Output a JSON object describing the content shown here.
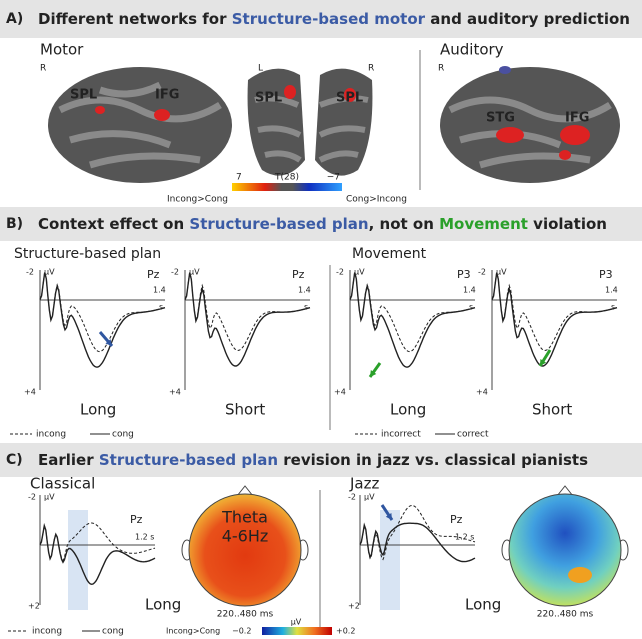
{
  "panel_a": {
    "label": "A)",
    "title": [
      "Different networks for ",
      "Structure-based motor",
      " and auditory prediction"
    ],
    "motor": "Motor",
    "auditory": "Auditory",
    "hemispheres": [
      "R",
      "L",
      "R",
      "R"
    ],
    "regions": [
      "SPL",
      "IFG",
      "SPL",
      "SPL",
      "STG",
      "IFG"
    ],
    "colorbar": {
      "left": "Incong>Cong",
      "max": "7",
      "stat": "T(28)",
      "min": "−7",
      "right": "Cong>Incong"
    }
  },
  "panel_b": {
    "label": "B)",
    "title": [
      "Context effect on ",
      "Structure-based plan",
      ", not on ",
      "Movement",
      " violation"
    ],
    "groups": [
      "Structure-based plan",
      "Movement"
    ],
    "plots": [
      {
        "top": "-2",
        "unit": "μV",
        "site": "Pz",
        "xend": "1.4",
        "xunit": "s",
        "bottom": "+4",
        "condition": "Long"
      },
      {
        "top": "-2",
        "unit": "μV",
        "site": "Pz",
        "xend": "1.4",
        "xunit": "s",
        "bottom": "+4",
        "condition": "Short"
      },
      {
        "top": "-2",
        "unit": "μV",
        "site": "P3",
        "xend": "1.4",
        "xunit": "s",
        "bottom": "+4",
        "condition": "Long"
      },
      {
        "top": "-2",
        "unit": "μV",
        "site": "P3",
        "xend": "1.4",
        "xunit": "s",
        "bottom": "+4",
        "condition": "Short"
      }
    ],
    "legends": [
      [
        "incong",
        "cong"
      ],
      [
        "incorrect",
        "correct"
      ]
    ]
  },
  "panel_c": {
    "label": "C)",
    "title": [
      "Earlier ",
      "Structure-based plan",
      " revision in jazz vs. classical pianists"
    ],
    "plots": [
      {
        "group": "Classical",
        "top": "-2",
        "unit": "μV",
        "site": "Pz",
        "xend": "1.2 s",
        "bottom": "+2",
        "condition": "Long",
        "window": "220..480 ms"
      },
      {
        "group": "Jazz",
        "top": "-2",
        "unit": "μV",
        "site": "Pz",
        "xend": "1.2 s",
        "bottom": "+2",
        "condition": "Long",
        "window": "220..480 ms"
      }
    ],
    "topo_label": [
      "Theta",
      "4-6Hz"
    ],
    "legend": [
      "incong",
      "cong"
    ],
    "colorbar": {
      "unit": "μV",
      "left": "Incong>Cong",
      "min": "−0.2",
      "max": "+0.2"
    }
  }
}
